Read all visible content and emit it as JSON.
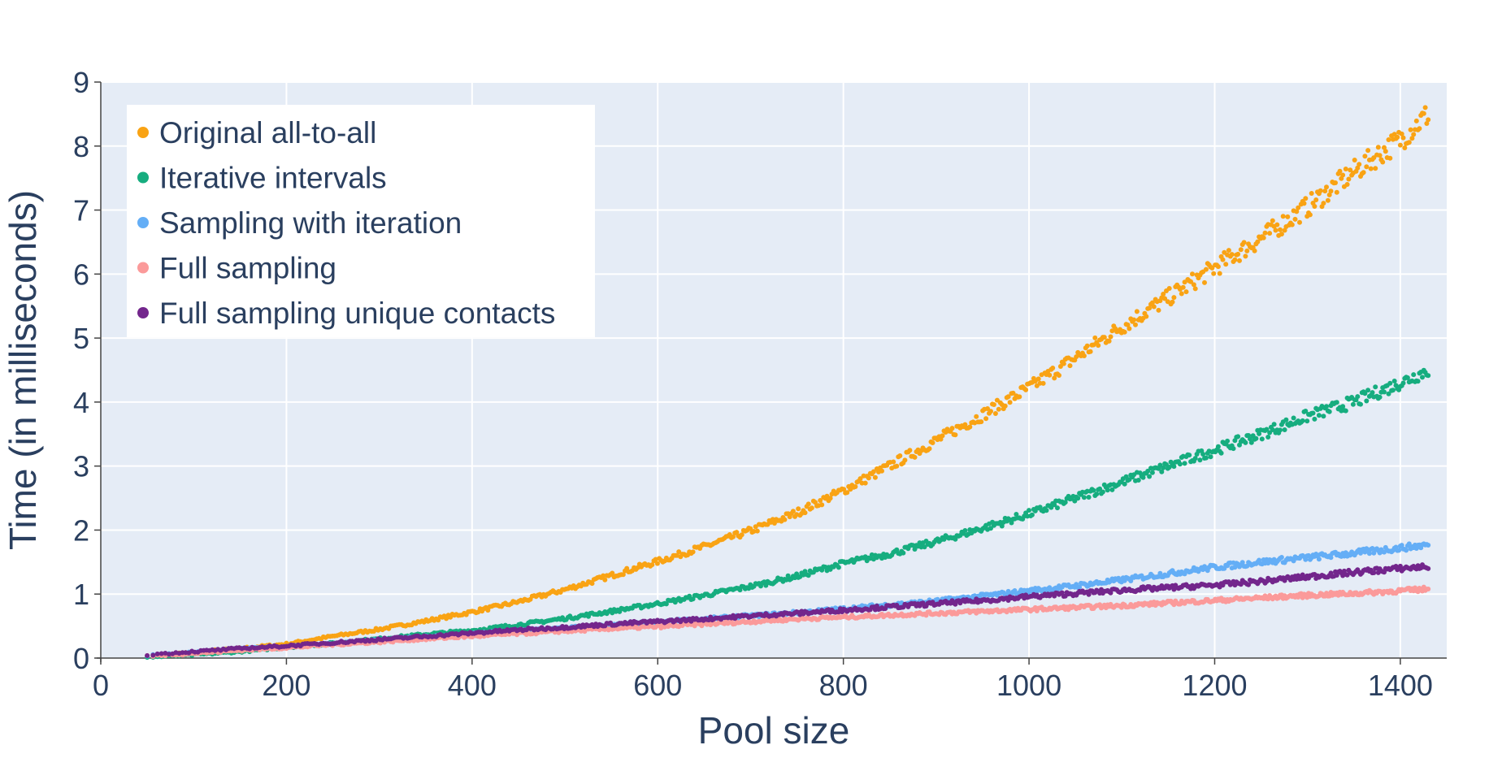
{
  "chart_data": {
    "type": "scatter",
    "title": "",
    "xlabel": "Pool size",
    "ylabel": "Time (in milliseconds)",
    "xlim": [
      0,
      1450
    ],
    "ylim": [
      0,
      9
    ],
    "x_ticks": [
      0,
      200,
      400,
      600,
      800,
      1000,
      1200,
      1400
    ],
    "y_ticks": [
      0,
      1,
      2,
      3,
      4,
      5,
      6,
      7,
      8,
      9
    ],
    "grid": true,
    "legend_position": "top-left",
    "colors": {
      "plot_background": "#e5ecf6",
      "grid": "#ffffff",
      "text": "#2a3f5f"
    },
    "series": [
      {
        "name": "Original all-to-all",
        "color": "#f9a314",
        "x": [
          50,
          100,
          150,
          200,
          250,
          300,
          350,
          400,
          450,
          500,
          550,
          600,
          650,
          700,
          750,
          800,
          850,
          900,
          950,
          1000,
          1050,
          1100,
          1150,
          1200,
          1250,
          1300,
          1350,
          1400,
          1430
        ],
        "y": [
          0.03,
          0.09,
          0.15,
          0.22,
          0.34,
          0.45,
          0.58,
          0.72,
          0.88,
          1.07,
          1.29,
          1.51,
          1.74,
          1.99,
          2.27,
          2.62,
          3.0,
          3.4,
          3.8,
          4.22,
          4.69,
          5.18,
          5.63,
          6.1,
          6.56,
          7.05,
          7.6,
          8.1,
          8.5
        ]
      },
      {
        "name": "Iterative intervals",
        "color": "#16ad7f",
        "x": [
          50,
          100,
          150,
          200,
          250,
          300,
          350,
          400,
          450,
          500,
          550,
          600,
          650,
          700,
          750,
          800,
          850,
          900,
          950,
          1000,
          1050,
          1100,
          1150,
          1200,
          1250,
          1300,
          1350,
          1400,
          1430
        ],
        "y": [
          0.01,
          0.05,
          0.1,
          0.17,
          0.23,
          0.3,
          0.37,
          0.43,
          0.52,
          0.62,
          0.73,
          0.85,
          0.98,
          1.12,
          1.28,
          1.48,
          1.63,
          1.82,
          2.03,
          2.25,
          2.5,
          2.75,
          3.0,
          3.25,
          3.5,
          3.78,
          4.0,
          4.3,
          4.5
        ]
      },
      {
        "name": "Sampling with iteration",
        "color": "#64aef6",
        "x": [
          50,
          100,
          150,
          200,
          250,
          300,
          350,
          400,
          450,
          500,
          550,
          600,
          650,
          700,
          750,
          800,
          850,
          900,
          950,
          1000,
          1050,
          1100,
          1150,
          1200,
          1250,
          1300,
          1350,
          1400,
          1430
        ],
        "y": [
          0.04,
          0.09,
          0.14,
          0.18,
          0.23,
          0.28,
          0.33,
          0.38,
          0.42,
          0.47,
          0.51,
          0.56,
          0.61,
          0.66,
          0.71,
          0.77,
          0.83,
          0.89,
          0.97,
          1.05,
          1.13,
          1.22,
          1.32,
          1.42,
          1.5,
          1.57,
          1.64,
          1.72,
          1.77
        ]
      },
      {
        "name": "Full sampling",
        "color": "#fb9a9a",
        "x": [
          50,
          100,
          150,
          200,
          250,
          300,
          350,
          400,
          450,
          500,
          550,
          600,
          650,
          700,
          750,
          800,
          850,
          900,
          950,
          1000,
          1050,
          1100,
          1150,
          1200,
          1250,
          1300,
          1350,
          1400,
          1430
        ],
        "y": [
          0.03,
          0.07,
          0.12,
          0.16,
          0.21,
          0.25,
          0.3,
          0.34,
          0.38,
          0.42,
          0.46,
          0.49,
          0.53,
          0.57,
          0.61,
          0.64,
          0.67,
          0.7,
          0.73,
          0.76,
          0.79,
          0.82,
          0.86,
          0.9,
          0.94,
          0.98,
          1.01,
          1.05,
          1.08
        ]
      },
      {
        "name": "Full sampling unique contacts",
        "color": "#73268c",
        "x": [
          50,
          100,
          150,
          200,
          250,
          300,
          350,
          400,
          450,
          500,
          550,
          600,
          650,
          700,
          750,
          800,
          850,
          900,
          950,
          1000,
          1050,
          1100,
          1150,
          1200,
          1250,
          1300,
          1350,
          1400,
          1430
        ],
        "y": [
          0.05,
          0.1,
          0.15,
          0.19,
          0.24,
          0.29,
          0.34,
          0.39,
          0.44,
          0.48,
          0.53,
          0.57,
          0.61,
          0.66,
          0.7,
          0.75,
          0.8,
          0.85,
          0.9,
          0.96,
          1.01,
          1.06,
          1.1,
          1.14,
          1.2,
          1.27,
          1.34,
          1.4,
          1.43
        ]
      }
    ]
  }
}
